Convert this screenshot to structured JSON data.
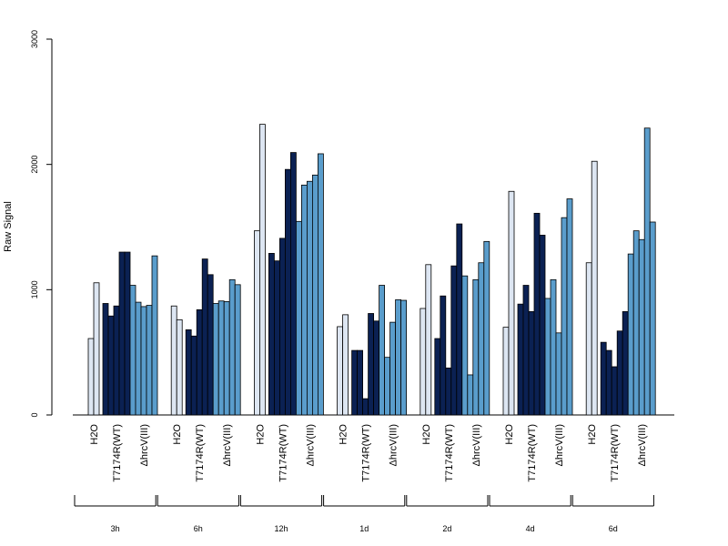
{
  "chart_data": {
    "type": "bar",
    "ylabel": "Raw Signal",
    "ylim": [
      0,
      3000
    ],
    "yticks": [
      "0",
      "1000",
      "2000",
      "3000"
    ],
    "treatments": [
      "H2O",
      "T7174R(WT)",
      "ΔhrcV(III)"
    ],
    "colors": {
      "H2O": "#dde6f2",
      "T7174R(WT)": "#0b2153",
      "ΔhrcV(III)": "#5a9dcc"
    },
    "groups": [
      {
        "label": "3h",
        "series": {
          "H2O": [
            610,
            1055
          ],
          "T7174R(WT)": [
            890,
            790,
            870,
            1300,
            1300
          ],
          "ΔhrcV(III)": [
            1035,
            900,
            865,
            875,
            1270
          ]
        }
      },
      {
        "label": "6h",
        "series": {
          "H2O": [
            870,
            760
          ],
          "T7174R(WT)": [
            680,
            630,
            840,
            1245,
            1120
          ],
          "ΔhrcV(III)": [
            890,
            910,
            905,
            1080,
            1040
          ]
        }
      },
      {
        "label": "12h",
        "series": {
          "H2O": [
            1470,
            2320
          ],
          "T7174R(WT)": [
            1290,
            1230,
            1410,
            1960,
            2095
          ],
          "ΔhrcV(III)": [
            1545,
            1835,
            1865,
            1915,
            2085
          ]
        }
      },
      {
        "label": "1d",
        "series": {
          "H2O": [
            705,
            800
          ],
          "T7174R(WT)": [
            515,
            515,
            130,
            810,
            750
          ],
          "ΔhrcV(III)": [
            1035,
            460,
            740,
            920,
            915
          ]
        }
      },
      {
        "label": "2d",
        "series": {
          "H2O": [
            850,
            1200
          ],
          "T7174R(WT)": [
            610,
            950,
            375,
            1190,
            1525
          ],
          "ΔhrcV(III)": [
            1110,
            320,
            1080,
            1215,
            1385
          ]
        }
      },
      {
        "label": "4d",
        "series": {
          "H2O": [
            700,
            1785
          ],
          "T7174R(WT)": [
            885,
            1035,
            825,
            1610,
            1435
          ],
          "ΔhrcV(III)": [
            930,
            1080,
            655,
            1575,
            1725
          ]
        }
      },
      {
        "label": "6d",
        "series": {
          "H2O": [
            1215,
            2025
          ],
          "T7174R(WT)": [
            580,
            515,
            385,
            670,
            825
          ],
          "ΔhrcV(III)": [
            1285,
            1470,
            1400,
            2290,
            1540
          ]
        }
      }
    ]
  }
}
